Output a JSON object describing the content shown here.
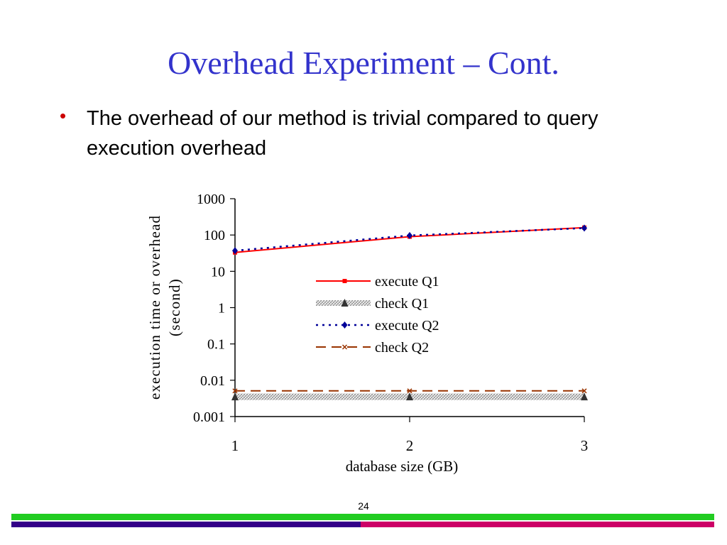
{
  "slide": {
    "title": "Overhead Experiment – Cont.",
    "bullet_symbol": "•",
    "bullet_text": "The overhead of our method is trivial compared to query execution overhead",
    "page_number": "24"
  },
  "colors": {
    "title": "#3333cc",
    "bullet": "#cc0000",
    "execute_q1": "#ff0000",
    "check_q1": "#999999",
    "execute_q2": "#000099",
    "check_q2": "#993300",
    "footer_green": "#22cc22",
    "footer_purple": "#330088",
    "footer_magenta": "#cc0066"
  },
  "chart_data": {
    "type": "line",
    "yscale": "log",
    "ylabel_lines": [
      "execution time or overhead",
      "(second)"
    ],
    "xlabel": "database size (GB)",
    "x": [
      1,
      2,
      3
    ],
    "x_tick_labels": [
      "1",
      "2",
      "3"
    ],
    "y_tick_values": [
      0.001,
      0.01,
      0.1,
      1,
      10,
      100,
      1000
    ],
    "y_tick_labels": [
      "0.001",
      "0.01",
      "0.1",
      "1",
      "10",
      "100",
      "1000"
    ],
    "ylim": [
      0.001,
      1000
    ],
    "xlim": [
      1,
      3
    ],
    "legend_position": "center",
    "series": [
      {
        "name": "execute Q1",
        "values": [
          33,
          90,
          160
        ],
        "line": "solid",
        "marker": "square"
      },
      {
        "name": "check Q1",
        "values": [
          0.0035,
          0.0035,
          0.0035
        ],
        "line": "hatched",
        "marker": "triangle"
      },
      {
        "name": "execute Q2",
        "values": [
          37,
          97,
          155
        ],
        "line": "dotted",
        "marker": "diamond"
      },
      {
        "name": "check Q2",
        "values": [
          0.0051,
          0.0051,
          0.0051
        ],
        "line": "dashed",
        "marker": "x"
      }
    ]
  }
}
